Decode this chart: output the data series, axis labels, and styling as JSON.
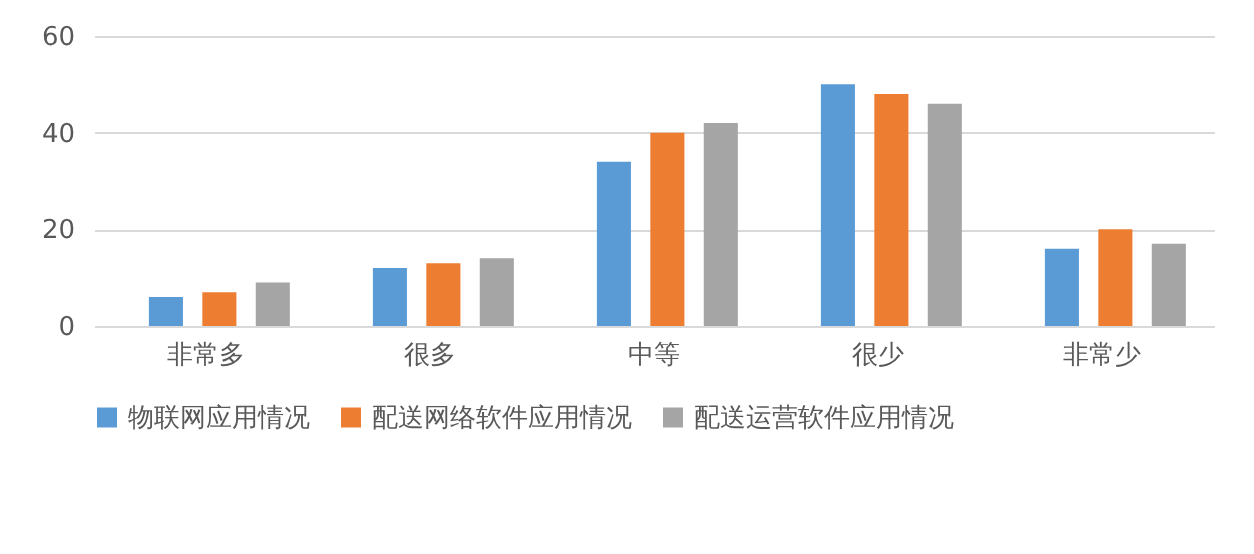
{
  "chart_data": {
    "type": "bar",
    "categories": [
      "非常多",
      "很多",
      "中等",
      "很少",
      "非常少"
    ],
    "series": [
      {
        "name": "物联网应用情况",
        "color": "#5b9bd5",
        "values": [
          6,
          12,
          34,
          50,
          16
        ]
      },
      {
        "name": "配送网络软件应用情况",
        "color": "#ed7d31",
        "values": [
          7,
          13,
          40,
          48,
          20
        ]
      },
      {
        "name": "配送运营软件应用情况",
        "color": "#a5a5a5",
        "values": [
          9,
          14,
          42,
          46,
          17
        ]
      }
    ],
    "ylim": [
      0,
      60
    ],
    "yticks": [
      0,
      20,
      40,
      60
    ],
    "grid": "y",
    "legend": "bottom"
  }
}
